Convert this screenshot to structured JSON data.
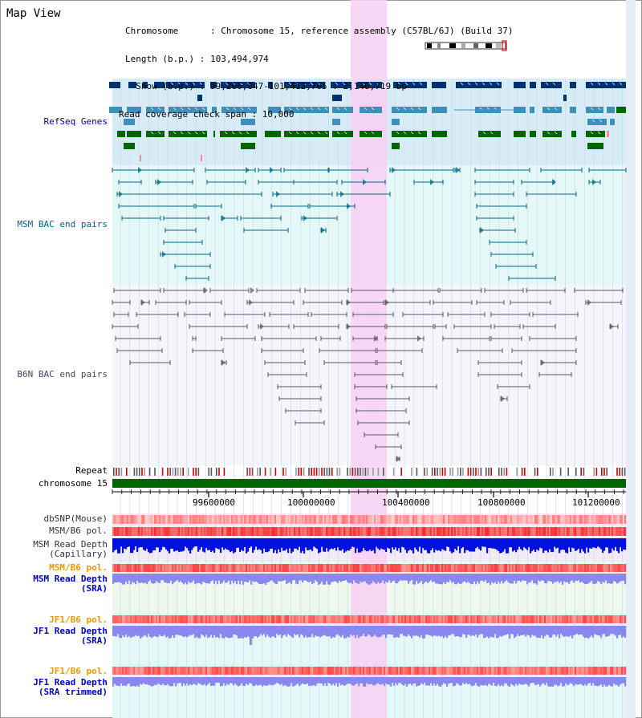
{
  "view": {
    "title": "Map View",
    "info_lines": [
      "Chromosome      : Chromosome 15, reference assembly (C57BL/6J) (Build 37)",
      "Length (b.p.) : 103,494,974",
      "  Show (b.p.) : 99,266,047-101,412,765 : 2,146,719 bp",
      "Read coverage check span : 10,000"
    ]
  },
  "tracks": {
    "refseq": {
      "label": "RefSeq Genes",
      "color": "#0000aa"
    },
    "msm_bac": {
      "label": "MSM BAC end pairs",
      "color": "#006688"
    },
    "b6n_bac": {
      "label": "B6N BAC end pairs",
      "color": "#444466"
    },
    "repeat": {
      "label": "Repeat",
      "color": "#000000"
    },
    "chromosome": {
      "label": "chromosome 15",
      "color": "#000000"
    },
    "dbsnp": {
      "label": "dbSNP(Mouse)",
      "color": "#333333"
    },
    "msm_b6_pol": {
      "label": "MSM/B6 pol.",
      "color": "#333333"
    },
    "msm_depth_cap": {
      "label": "MSM Read Depth\n(Capillary)",
      "color": "#333333"
    },
    "msm_b6_pol_2": {
      "label": "MSM/B6 pol.",
      "color": "#ee9900"
    },
    "msm_depth_sra": {
      "label": "MSM Read Depth\n(SRA)",
      "color": "#0000cc"
    },
    "jf1_b6_pol": {
      "label": "JF1/B6 pol.",
      "color": "#ee9900"
    },
    "jf1_depth_sra": {
      "label": "JF1 Read Depth\n(SRA)",
      "color": "#0000cc"
    },
    "jf1_b6_pol_2": {
      "label": "JF1/B6 pol.",
      "color": "#ee9900"
    },
    "jf1_depth_trim": {
      "label": "JF1 Read Depth\n(SRA trimmed)",
      "color": "#0000cc"
    }
  },
  "axis": {
    "labels": [
      "99600000",
      "100000000",
      "100400000",
      "100800000",
      "101200000"
    ]
  },
  "colors": {
    "refseq_bg": "#d8ecf8",
    "msm_bg": "#e4f8f8",
    "highlight": "#f8d0f4",
    "gene_dark": "#00336e",
    "gene_mid": "#3f90b8",
    "gene_green": "#006600",
    "msm_line": "#006688",
    "b6n_line": "#555566",
    "chromosome": "#006600",
    "depth_dark": "#0011dd",
    "depth_light": "#8888ee"
  }
}
